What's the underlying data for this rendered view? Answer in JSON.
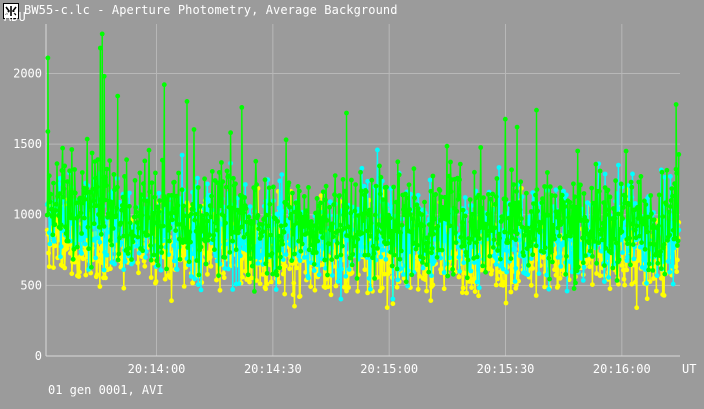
{
  "window": {
    "title": "BW55-c.lc - Aperture Photometry, Average Background"
  },
  "footer": {
    "text": "01 gen 0001, AVI"
  },
  "chart_data": {
    "type": "line",
    "title": "",
    "ylabel": "ADU",
    "xlabel": "UT",
    "y_ticks": [
      0,
      500,
      1000,
      1500,
      2000
    ],
    "x_ticks": [
      "20:14:00",
      "20:14:30",
      "20:15:00",
      "20:15:30",
      "20:16:00"
    ],
    "x_tick_seconds": [
      0,
      30,
      60,
      90,
      120
    ],
    "xlim_seconds": [
      -28.5,
      135
    ],
    "ylim": [
      0,
      2350
    ],
    "grid": true,
    "legend": "none",
    "series": [
      {
        "color": "#ffff00",
        "min": 230,
        "max": 1380,
        "mean": 720,
        "spread": 380,
        "spikes": []
      },
      {
        "color": "#00ffff",
        "min": 180,
        "max": 1850,
        "mean": 860,
        "spread": 450,
        "spikes": []
      },
      {
        "color": "#00ff00",
        "min": 220,
        "max": 2280,
        "mean": 960,
        "spread": 500,
        "spikes": [
          {
            "t": -28,
            "v": 2110
          },
          {
            "t": -14,
            "v": 2280
          },
          {
            "t": -14.5,
            "v": 2180
          },
          {
            "t": -13.5,
            "v": 1980
          },
          {
            "t": -10,
            "v": 1840
          },
          {
            "t": 2,
            "v": 1920
          },
          {
            "t": 22,
            "v": 1760
          },
          {
            "t": 49,
            "v": 1720
          },
          {
            "t": 93,
            "v": 1620
          },
          {
            "t": 98,
            "v": 1740
          },
          {
            "t": 134,
            "v": 1780
          }
        ]
      }
    ]
  }
}
